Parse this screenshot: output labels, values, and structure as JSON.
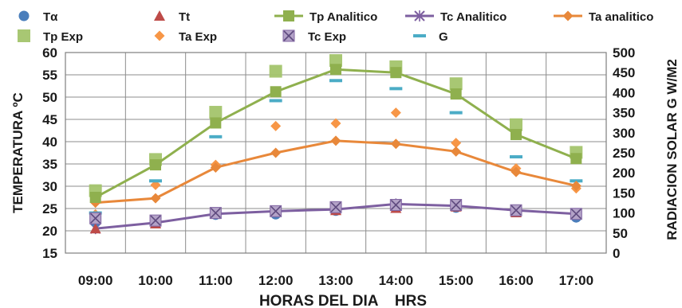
{
  "chart_data": {
    "type": "line",
    "xlabel": "HORAS DEL DIA    HRS",
    "ylabel_left": "TEMPERATURA ºC",
    "ylabel_right": "RADIACION SOLAR G W/M2",
    "categories": [
      "09:00",
      "10:00",
      "11:00",
      "12:00",
      "13:00",
      "14:00",
      "15:00",
      "16:00",
      "17:00"
    ],
    "y_left": {
      "min": 15,
      "max": 60,
      "ticks": [
        15,
        20,
        25,
        30,
        35,
        40,
        45,
        50,
        55,
        60
      ]
    },
    "y_right": {
      "min": 0,
      "max": 500,
      "ticks": [
        0,
        50,
        100,
        150,
        200,
        250,
        300,
        350,
        400,
        450,
        500
      ]
    },
    "grid": "vertical-and-horizontal",
    "legend_placement": "top",
    "series": [
      {
        "name": "Tα",
        "axis": "left",
        "kind": "marker",
        "marker": "circle",
        "color": "#4a7ebb",
        "values": [
          22,
          21.8,
          23.6,
          23.7,
          24.5,
          25.6,
          25.2,
          24.3,
          23
        ]
      },
      {
        "name": "Tt",
        "axis": "left",
        "kind": "marker",
        "marker": "triangle",
        "color": "#be4b48",
        "values": [
          20.5,
          21.6,
          23.8,
          24.2,
          24.6,
          25.1,
          25.4,
          24.1,
          23.8
        ]
      },
      {
        "name": "Tp Analitico",
        "axis": "left",
        "kind": "line",
        "marker": "square",
        "color": "#8fb04e",
        "values": [
          27.5,
          34.8,
          44.2,
          51.2,
          56.2,
          55.5,
          50.7,
          41.6,
          36.2
        ]
      },
      {
        "name": "Tc Analitico",
        "axis": "left",
        "kind": "line",
        "marker": "x",
        "color": "#7d5fa0",
        "values": [
          20.5,
          21.8,
          23.8,
          24.4,
          24.8,
          26,
          25.6,
          24.6,
          23.8
        ]
      },
      {
        "name": "Ta analitico",
        "axis": "left",
        "kind": "line",
        "marker": "diamond",
        "color": "#e8883a",
        "values": [
          26.3,
          27.3,
          34.2,
          37.5,
          40.2,
          39.5,
          37.8,
          33.2,
          30.1
        ]
      },
      {
        "name": "Tp Exp",
        "axis": "left",
        "kind": "marker",
        "marker": "square-large",
        "color": "#a3c46c",
        "values": [
          29,
          36,
          46.6,
          55.8,
          58.2,
          56.8,
          53,
          43.8,
          37.6
        ]
      },
      {
        "name": "Ta Exp",
        "axis": "left",
        "kind": "marker",
        "marker": "diamond",
        "color": "#f79646",
        "values": [
          23.7,
          30.3,
          34.8,
          43.5,
          44.1,
          46.5,
          39.7,
          34,
          29.5
        ]
      },
      {
        "name": "Tc Exp",
        "axis": "left",
        "kind": "marker",
        "marker": "square-x",
        "color": "#8064a2",
        "values": [
          22.8,
          22.3,
          24,
          24.4,
          25.3,
          25.8,
          25.8,
          24.6,
          23.8
        ]
      },
      {
        "name": "G",
        "axis": "right",
        "kind": "marker",
        "marker": "dash",
        "color": "#4bacc6",
        "values": [
          100,
          180,
          290,
          380,
          430,
          410,
          350,
          240,
          180
        ]
      }
    ]
  }
}
